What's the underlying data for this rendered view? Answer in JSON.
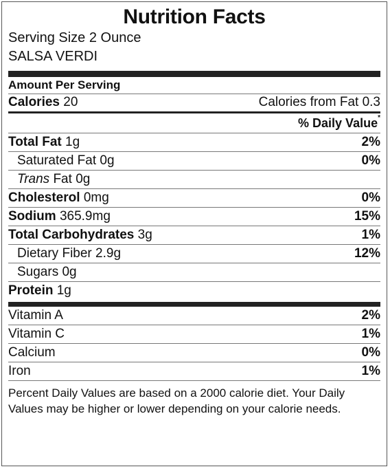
{
  "label": {
    "title": "Nutrition Facts",
    "serving_size": "Serving Size 2 Ounce",
    "product_name": "SALSA VERDI",
    "amount_per_serving": "Amount Per Serving",
    "calories_label": "Calories",
    "calories_value": "20",
    "calories_from_fat": "Calories from Fat 0.3",
    "daily_value_header": "% Daily Value",
    "daily_value_mark": "*",
    "nutrients": [
      {
        "name": "Total Fat",
        "amount": "1g",
        "dv": "2%"
      },
      {
        "name": "Saturated Fat",
        "amount": "0g",
        "dv": "0%"
      },
      {
        "name": "Trans",
        "suffix": " Fat",
        "amount": "0g",
        "dv": ""
      },
      {
        "name": "Cholesterol",
        "amount": "0mg",
        "dv": "0%"
      },
      {
        "name": "Sodium",
        "amount": "365.9mg",
        "dv": "15%"
      },
      {
        "name": "Total Carbohydrates",
        "amount": "3g",
        "dv": "1%"
      },
      {
        "name": "Dietary Fiber",
        "amount": "2.9g",
        "dv": "12%"
      },
      {
        "name": "Sugars",
        "amount": "0g",
        "dv": ""
      },
      {
        "name": "Protein",
        "amount": "1g",
        "dv": ""
      }
    ],
    "vitamins": [
      {
        "name": "Vitamin A",
        "dv": "2%"
      },
      {
        "name": "Vitamin C",
        "dv": "1%"
      },
      {
        "name": "Calcium",
        "dv": "0%"
      },
      {
        "name": "Iron",
        "dv": "1%"
      }
    ],
    "footnote": "Percent Daily Values are based on a 2000 calorie diet. Your Daily Values may be higher or lower depending on your calorie needs."
  }
}
